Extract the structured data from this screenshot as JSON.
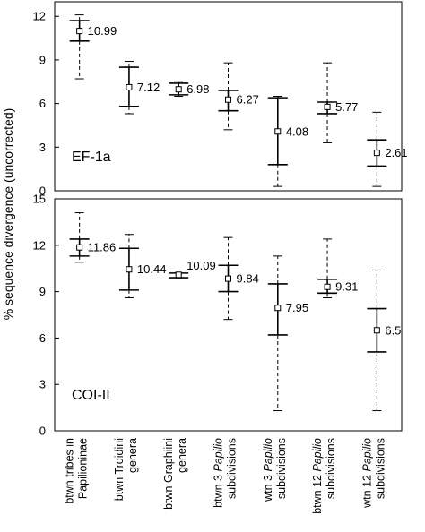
{
  "chart_data": {
    "type": "error-bar",
    "ylabel": "% sequence divergence (uncorrected)",
    "categories": [
      [
        "btwn tribes in",
        "Papilioninae"
      ],
      [
        "btwn Troidini",
        "genera"
      ],
      [
        "btwn Graphiini",
        "genera"
      ],
      [
        "btwn 3 |Papilio|",
        "subdivisions"
      ],
      [
        "wtn 3 |Papilio|",
        "subdivisions"
      ],
      [
        "btwn 12 |Papilio|",
        "subdivisions"
      ],
      [
        "wtn 12 |Papilio|",
        "subdivisions"
      ]
    ],
    "panels": [
      {
        "label": "EF-1a",
        "ylim": [
          0,
          13
        ],
        "yticks": [
          0,
          3,
          6,
          9,
          12
        ],
        "points": [
          {
            "mean": 10.99,
            "label": "10.99",
            "sd_low": 10.3,
            "sd_high": 11.7,
            "min": 7.7,
            "max": 12.1
          },
          {
            "mean": 7.12,
            "label": "7.12",
            "sd_low": 5.8,
            "sd_high": 8.5,
            "min": 5.3,
            "max": 8.9
          },
          {
            "mean": 6.98,
            "label": "6.98",
            "sd_low": 6.6,
            "sd_high": 7.4,
            "min": 6.5,
            "max": 7.5
          },
          {
            "mean": 6.27,
            "label": "6.27",
            "sd_low": 5.5,
            "sd_high": 6.9,
            "min": 4.2,
            "max": 8.8
          },
          {
            "mean": 4.08,
            "label": "4.08",
            "sd_low": 1.8,
            "sd_high": 6.4,
            "min": 0.3,
            "max": 6.5
          },
          {
            "mean": 5.77,
            "label": "5.77",
            "sd_low": 5.3,
            "sd_high": 6.1,
            "min": 3.3,
            "max": 8.8
          },
          {
            "mean": 2.61,
            "label": "2.61",
            "sd_low": 1.7,
            "sd_high": 3.5,
            "min": 0.3,
            "max": 5.4
          }
        ]
      },
      {
        "label": "COI-II",
        "ylim": [
          0,
          15
        ],
        "yticks": [
          0,
          3,
          6,
          9,
          12,
          15
        ],
        "points": [
          {
            "mean": 11.86,
            "label": "11.86",
            "sd_low": 11.3,
            "sd_high": 12.4,
            "min": 10.9,
            "max": 14.1
          },
          {
            "mean": 10.44,
            "label": "10.44",
            "sd_low": 9.1,
            "sd_high": 11.8,
            "min": 8.6,
            "max": 12.7
          },
          {
            "mean": 10.09,
            "label": "10.09",
            "sd_low": 9.9,
            "sd_high": 10.2,
            "min": 9.9,
            "max": 10.2
          },
          {
            "mean": 9.84,
            "label": "9.84",
            "sd_low": 9.0,
            "sd_high": 10.7,
            "min": 7.2,
            "max": 12.5
          },
          {
            "mean": 7.95,
            "label": "7.95",
            "sd_low": 6.2,
            "sd_high": 9.5,
            "min": 1.3,
            "max": 11.3
          },
          {
            "mean": 9.31,
            "label": "9.31",
            "sd_low": 8.9,
            "sd_high": 9.8,
            "min": 8.6,
            "max": 12.4
          },
          {
            "mean": 6.5,
            "label": "6.5",
            "sd_low": 5.1,
            "sd_high": 7.9,
            "min": 1.3,
            "max": 10.4
          }
        ]
      }
    ]
  }
}
